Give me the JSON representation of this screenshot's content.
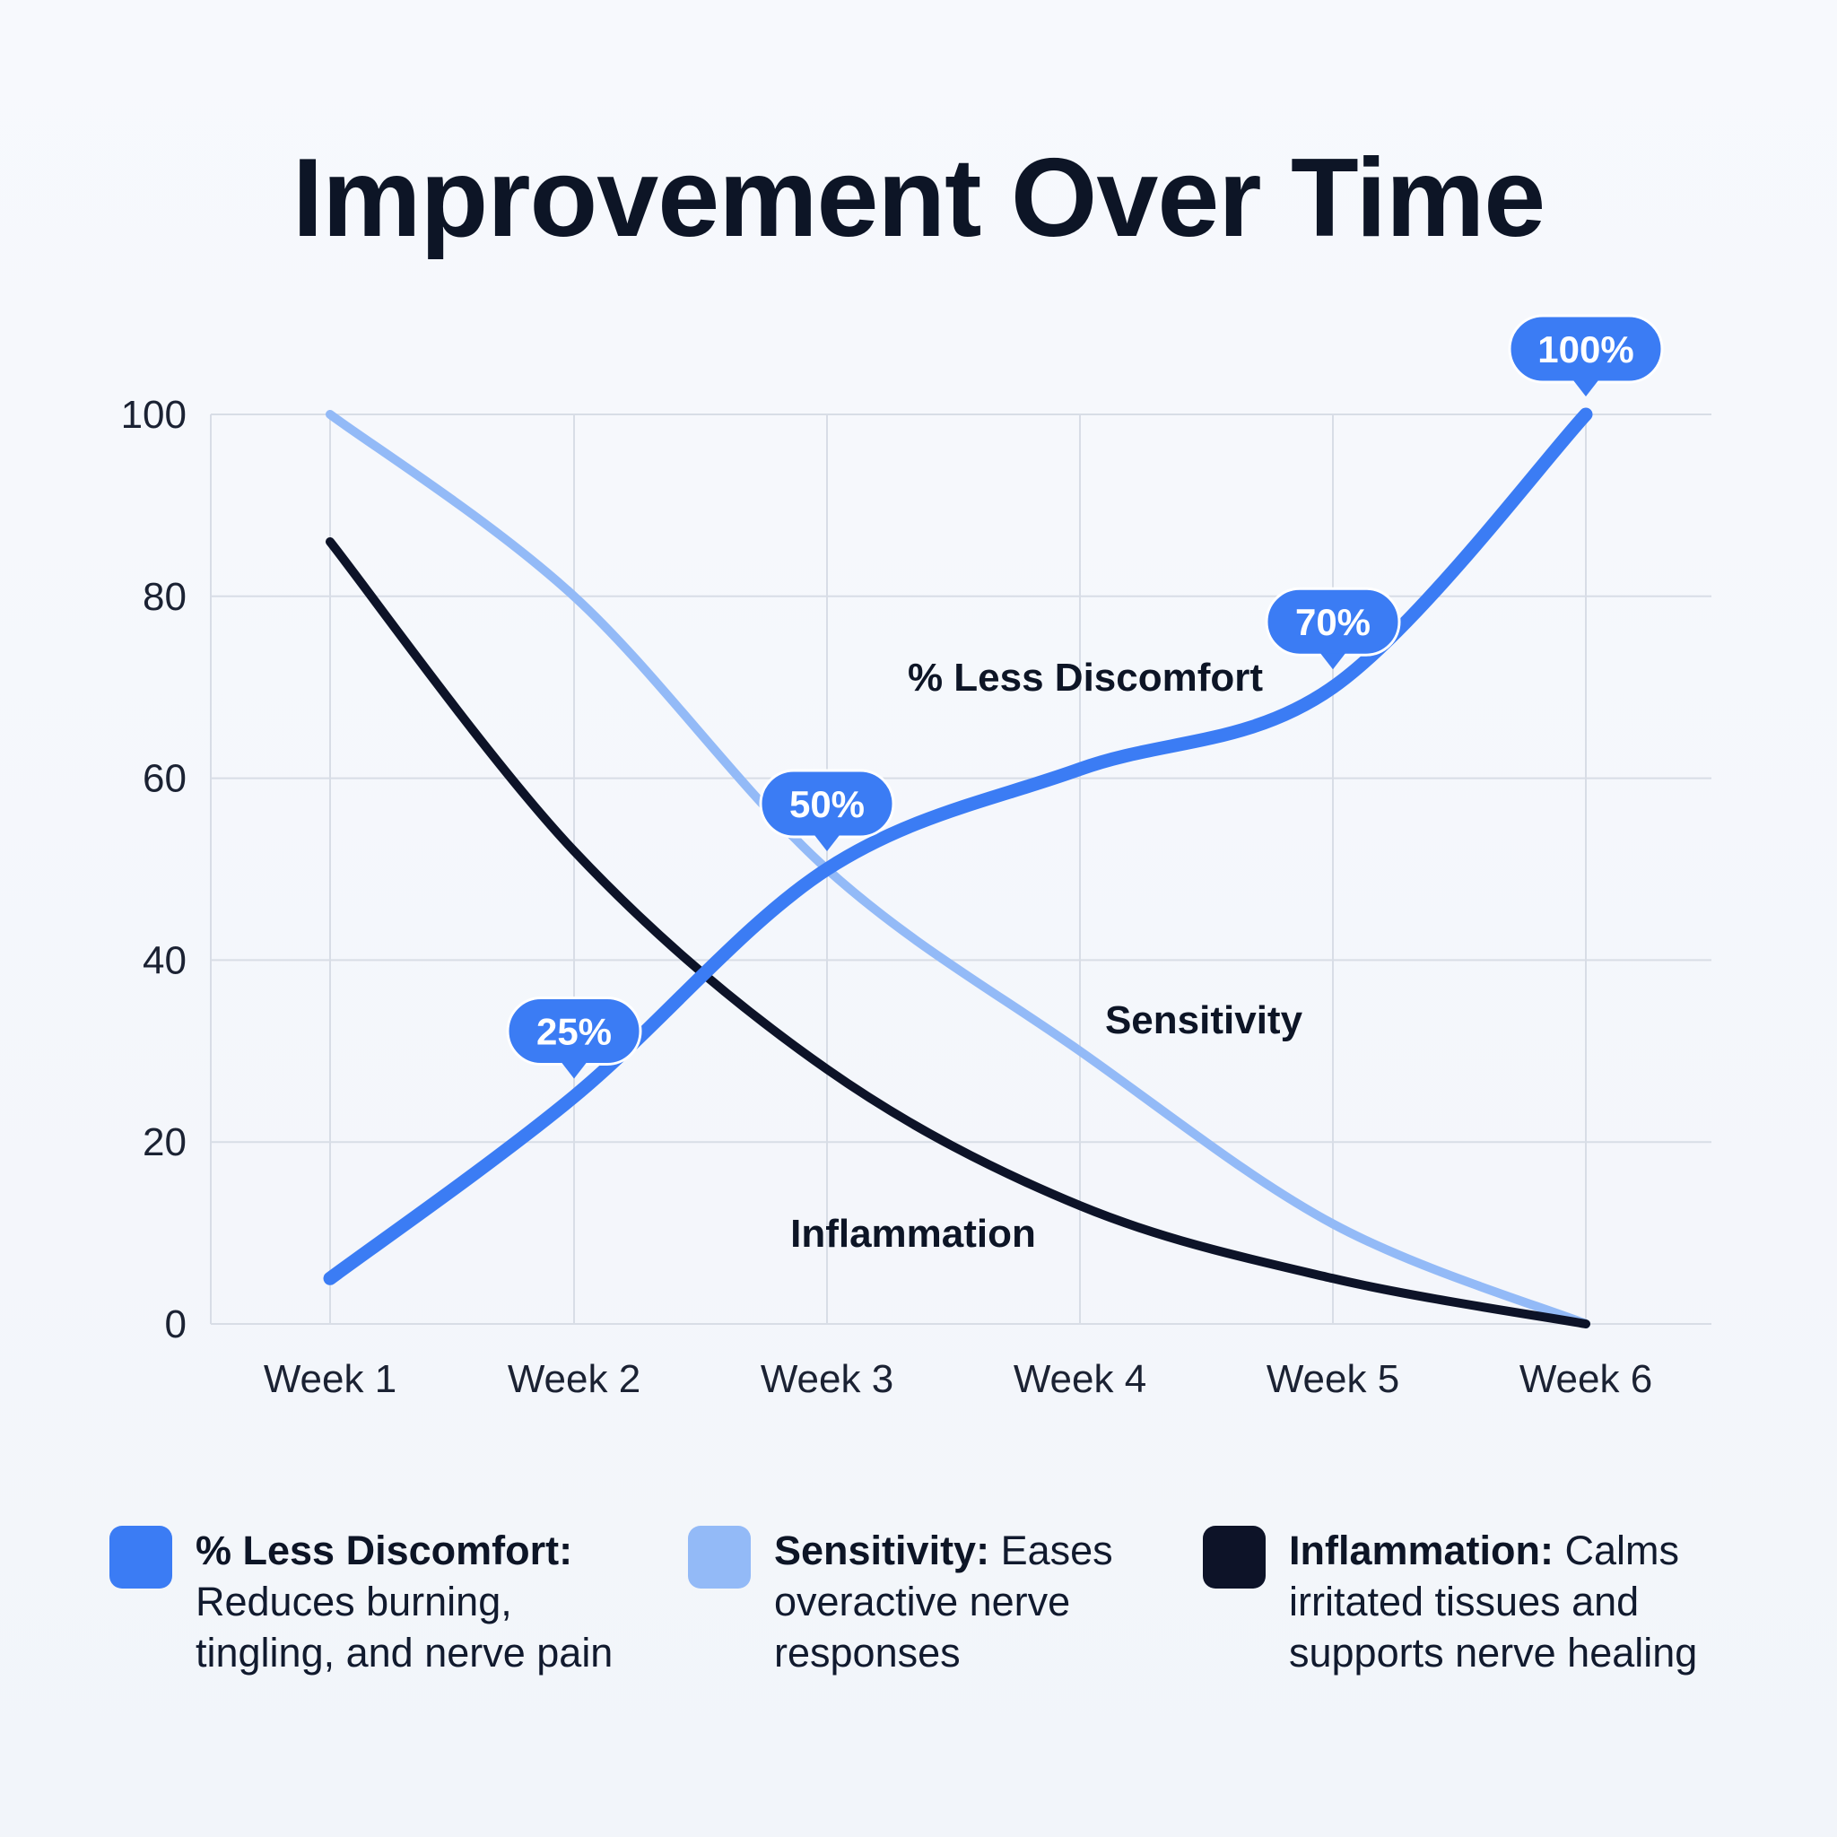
{
  "title": "Improvement Over Time",
  "colors": {
    "less_discomfort": "#3b7cf4",
    "sensitivity": "#93baf7",
    "inflammation": "#0d1328",
    "grid": "#d8dde6",
    "text": "#0d1526",
    "callout": "#3b7cf4"
  },
  "chart_data": {
    "type": "line",
    "title": "Improvement Over Time",
    "xlabel": "",
    "ylabel": "",
    "categories": [
      "Week 1",
      "Week 2",
      "Week 3",
      "Week 4",
      "Week 5",
      "Week 6"
    ],
    "ylim": [
      0,
      100
    ],
    "yticks": [
      "0",
      "20",
      "40",
      "60",
      "80",
      "100"
    ],
    "grid": true,
    "series": [
      {
        "name": "% Less Discomfort",
        "color": "#3b7cf4",
        "values": [
          5,
          25,
          50,
          61,
          70,
          100
        ],
        "callouts": [
          "",
          "25%",
          "50%",
          "",
          "70%",
          "100%"
        ]
      },
      {
        "name": "Sensitivity",
        "color": "#93baf7",
        "values": [
          100,
          80,
          50,
          30,
          11,
          0
        ]
      },
      {
        "name": "Inflammation",
        "color": "#0d1328",
        "values": [
          86,
          52,
          28,
          13,
          5,
          0
        ]
      }
    ]
  },
  "legend": [
    {
      "name": "% Less Discomfort:",
      "description": "Reduces burning, tingling, and nerve pain",
      "color": "#3b7cf4"
    },
    {
      "name": "Sensitivity:",
      "description": "Eases overactive nerve responses",
      "color": "#93baf7"
    },
    {
      "name": "Inflammation:",
      "description": "Calms irritated tissues and supports nerve healing",
      "color": "#0d1328"
    }
  ]
}
